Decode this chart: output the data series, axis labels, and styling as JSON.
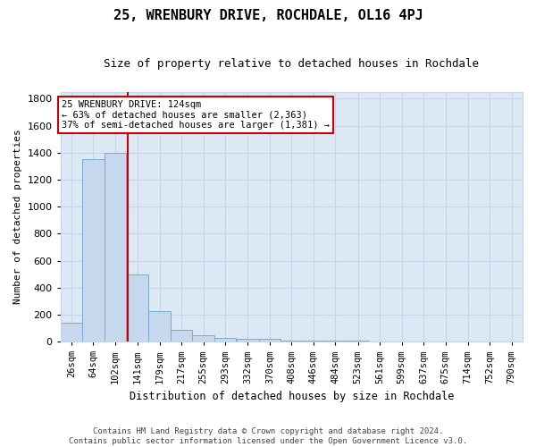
{
  "title": "25, WRENBURY DRIVE, ROCHDALE, OL16 4PJ",
  "subtitle": "Size of property relative to detached houses in Rochdale",
  "xlabel": "Distribution of detached houses by size in Rochdale",
  "ylabel": "Number of detached properties",
  "property_size": 124,
  "footer_line1": "Contains HM Land Registry data © Crown copyright and database right 2024.",
  "footer_line2": "Contains public sector information licensed under the Open Government Licence v3.0.",
  "bin_centers": [
    26,
    64,
    102,
    141,
    179,
    217,
    255,
    293,
    332,
    370,
    408,
    446,
    484,
    523,
    561,
    599,
    637,
    675,
    714,
    752,
    790
  ],
  "bar_heights": [
    140,
    1350,
    1400,
    500,
    225,
    85,
    50,
    30,
    20,
    20,
    10,
    5,
    5,
    5,
    0,
    0,
    0,
    0,
    0,
    0,
    0
  ],
  "bar_color": "#c5d8ee",
  "bar_edge_color": "#7aaad0",
  "grid_color": "#c8d5e8",
  "background_color": "#dde8f5",
  "annotation_box_edge_color": "#cc0000",
  "vline_color": "#cc0000",
  "ylim": [
    0,
    1850
  ],
  "figsize": [
    6.0,
    5.0
  ],
  "dpi": 100,
  "annotation_line1": "25 WRENBURY DRIVE: 124sqm",
  "annotation_line2": "← 63% of detached houses are smaller (2,363)",
  "annotation_line3": "37% of semi-detached houses are larger (1,381) →"
}
